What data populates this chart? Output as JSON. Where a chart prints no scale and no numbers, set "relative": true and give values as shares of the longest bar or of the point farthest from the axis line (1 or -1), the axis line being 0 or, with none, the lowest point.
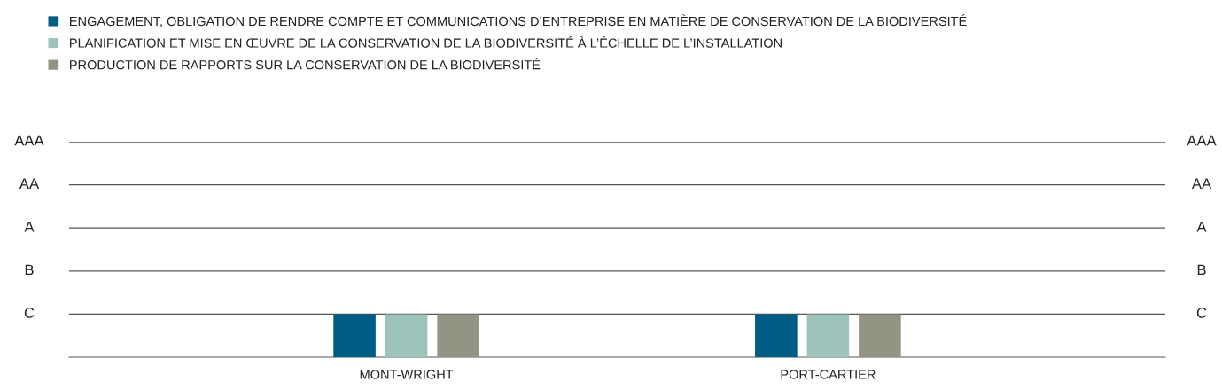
{
  "chart_data": {
    "type": "bar",
    "categories": [
      "MONT-WRIGHT",
      "PORT-CARTIER"
    ],
    "series": [
      {
        "name": "ENGAGEMENT, OBLIGATION DE RENDRE COMPTE ET COMMUNICATIONS D’ENTREPRISE EN MATIÈRE DE CONSERVATION DE LA BIODIVERSITÉ",
        "color": "#005c84",
        "values": [
          1,
          1
        ]
      },
      {
        "name": "PLANIFICATION ET MISE EN ŒUVRE DE LA CONSERVATION DE LA BIODIVERSITÉ À L’ÉCHELLE DE L’INSTALLATION",
        "color": "#9dc3bb",
        "values": [
          1,
          1
        ]
      },
      {
        "name": "PRODUCTION DE RAPPORTS SUR LA CONSERVATION DE LA BIODIVERSITÉ",
        "color": "#949484",
        "values": [
          1,
          1
        ]
      }
    ],
    "relative": true,
    "ref_lines": [
      {
        "axis": "y",
        "value": 1,
        "label": "C"
      },
      {
        "axis": "y",
        "value": 2,
        "label": "B"
      },
      {
        "axis": "y",
        "value": 3,
        "label": "A"
      },
      {
        "axis": "y",
        "value": 4,
        "label": "AA"
      },
      {
        "axis": "y",
        "value": 5,
        "label": "AAA"
      }
    ],
    "legend": "top left"
  }
}
